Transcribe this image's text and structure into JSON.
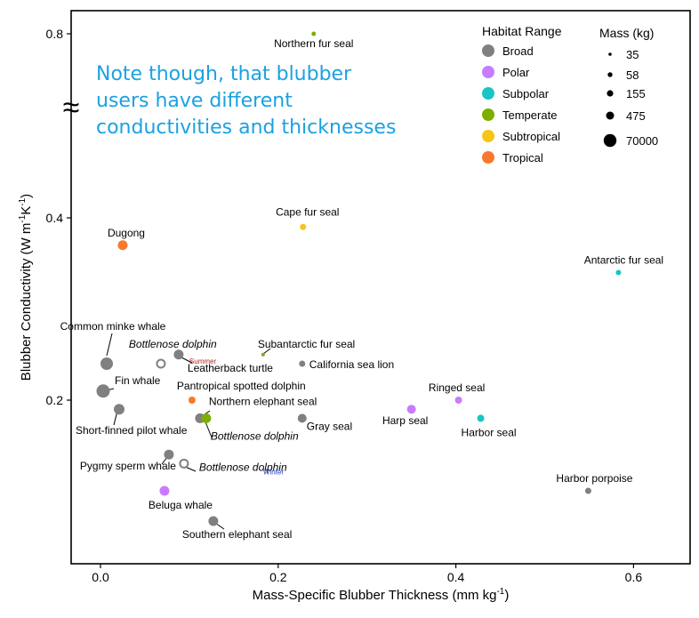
{
  "chart_data": {
    "type": "scatter",
    "xlabel": "Mass-Specific Blubber Thickness (mm kg",
    "xlabel_sup": "-1",
    "xlabel_end": ")",
    "ylabel": "Blubber Conductivity (W m",
    "ylabel_sup1": "-1",
    "ylabel_mid": "K",
    "ylabel_sup2": "-1",
    "ylabel_end": ")",
    "xlim": [
      -0.03,
      0.665
    ],
    "yticks": [
      {
        "label": "0.2",
        "value": 0.2
      },
      {
        "label": "0.4",
        "value": 0.4
      },
      {
        "label": "0.8",
        "value": 0.8
      }
    ],
    "xticks": [
      {
        "label": "0.0",
        "value": 0.0
      },
      {
        "label": "0.2",
        "value": 0.2
      },
      {
        "label": "0.4",
        "value": 0.4
      },
      {
        "label": "0.6",
        "value": 0.6
      }
    ],
    "axis_break_symbol": "≈",
    "annotation_lines": [
      "Note though, that blubber",
      "users have different",
      "conductivities and thicknesses"
    ],
    "annotation_color": "#1ba1e2",
    "habitat_legend": {
      "title": "Habitat Range",
      "items": [
        {
          "label": "Broad",
          "color": "#808080"
        },
        {
          "label": "Polar",
          "color": "#c77cff"
        },
        {
          "label": "Subpolar",
          "color": "#19c4c4"
        },
        {
          "label": "Temperate",
          "color": "#7cae00"
        },
        {
          "label": "Subtropical",
          "color": "#f5c518"
        },
        {
          "label": "Tropical",
          "color": "#f8792c"
        }
      ]
    },
    "mass_legend": {
      "title": "Mass (kg)",
      "items": [
        {
          "label": "35",
          "size": 2
        },
        {
          "label": "58",
          "size": 3
        },
        {
          "label": "155",
          "size": 4
        },
        {
          "label": "475",
          "size": 5
        },
        {
          "label": "70000",
          "size": 8
        }
      ]
    },
    "points": [
      {
        "name": "Northern fur seal",
        "x": 0.24,
        "y": 0.8,
        "habitat": "Temperate",
        "r": 2.5,
        "label": "Northern fur seal",
        "italic": false
      },
      {
        "name": "Cape fur seal",
        "x": 0.228,
        "y": 0.39,
        "habitat": "Subtropical",
        "r": 3.5,
        "label": "Cape fur seal",
        "italic": false
      },
      {
        "name": "Dugong",
        "x": 0.025,
        "y": 0.37,
        "habitat": "Tropical",
        "r": 5.5,
        "label": "Dugong",
        "italic": false
      },
      {
        "name": "Antarctic fur seal",
        "x": 0.583,
        "y": 0.34,
        "habitat": "Subpolar",
        "r": 3.0,
        "label": "Antarctic fur seal",
        "italic": false
      },
      {
        "name": "Common minke whale",
        "x": 0.007,
        "y": 0.24,
        "habitat": "Broad",
        "r": 7.0,
        "label": "Common minke whale",
        "italic": false
      },
      {
        "name": "Bottlenose dolphin (summer)",
        "x": 0.068,
        "y": 0.24,
        "habitat": "Broad",
        "r": 4.5,
        "hollow": true,
        "label": "Bottlenose dolphin",
        "italic": true,
        "season": "Summer",
        "season_color": "#b22222"
      },
      {
        "name": "Leatherback turtle",
        "x": 0.088,
        "y": 0.25,
        "habitat": "Broad",
        "r": 5.5,
        "label": "Leatherback turtle",
        "italic": false
      },
      {
        "name": "Subantarctic fur seal",
        "x": 0.183,
        "y": 0.25,
        "habitat": "Temperate",
        "r": 2.0,
        "label": "Subantarctic fur seal",
        "italic": false
      },
      {
        "name": "California sea lion",
        "x": 0.227,
        "y": 0.24,
        "habitat": "Broad",
        "r": 3.5,
        "label": "California sea lion",
        "italic": false
      },
      {
        "name": "Fin whale",
        "x": 0.003,
        "y": 0.21,
        "habitat": "Broad",
        "r": 7.5,
        "label": "Fin whale",
        "italic": false
      },
      {
        "name": "Pantropical spotted dolphin",
        "x": 0.103,
        "y": 0.2,
        "habitat": "Tropical",
        "r": 4.0,
        "label": "Pantropical spotted dolphin",
        "italic": false
      },
      {
        "name": "Short-finned pilot whale",
        "x": 0.021,
        "y": 0.19,
        "habitat": "Broad",
        "r": 6.0,
        "label": "Short-finned pilot whale",
        "italic": false
      },
      {
        "name": "Northern elephant seal",
        "x": 0.112,
        "y": 0.18,
        "habitat": "Broad",
        "r": 5.5,
        "label": "Northern elephant seal",
        "italic": false
      },
      {
        "name": "Bottlenose dolphin",
        "x": 0.119,
        "y": 0.18,
        "habitat": "Temperate",
        "r": 5.5,
        "label": "Bottlenose dolphin",
        "italic": true
      },
      {
        "name": "Gray seal",
        "x": 0.227,
        "y": 0.18,
        "habitat": "Broad",
        "r": 5.0,
        "label": "Gray seal",
        "italic": false
      },
      {
        "name": "Harp seal",
        "x": 0.35,
        "y": 0.19,
        "habitat": "Polar",
        "r": 5.0,
        "label": "Harp seal",
        "italic": false
      },
      {
        "name": "Ringed seal",
        "x": 0.403,
        "y": 0.2,
        "habitat": "Polar",
        "r": 4.0,
        "label": "Ringed seal",
        "italic": false
      },
      {
        "name": "Harbor seal",
        "x": 0.428,
        "y": 0.18,
        "habitat": "Subpolar",
        "r": 4.0,
        "label": "Harbor seal",
        "italic": false
      },
      {
        "name": "Pygmy sperm whale",
        "x": 0.077,
        "y": 0.14,
        "habitat": "Broad",
        "r": 5.5,
        "label": "Pygmy sperm whale",
        "italic": false
      },
      {
        "name": "Bottlenose dolphin (winter)",
        "x": 0.094,
        "y": 0.13,
        "habitat": "Broad",
        "r": 4.5,
        "hollow": true,
        "label": "Bottlenose dolphin",
        "italic": true,
        "season": "Winter",
        "season_color": "#1f3fbf"
      },
      {
        "name": "Beluga whale",
        "x": 0.072,
        "y": 0.1,
        "habitat": "Polar",
        "r": 5.5,
        "label": "Beluga whale",
        "italic": false
      },
      {
        "name": "Southern elephant seal",
        "x": 0.127,
        "y": 0.07,
        "habitat": "Broad",
        "r": 5.5,
        "label": "Southern elephant seal",
        "italic": false
      },
      {
        "name": "Harbor porpoise",
        "x": 0.549,
        "y": 0.1,
        "habitat": "Broad",
        "r": 3.5,
        "label": "Harbor porpoise",
        "italic": false
      }
    ]
  }
}
